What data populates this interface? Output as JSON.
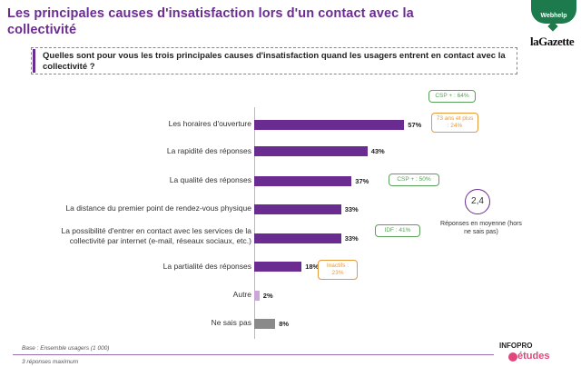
{
  "header": {
    "title": "Les principales causes d'insatisfaction lors d'un contact avec la collectivité",
    "question": "Quelles sont pour vous les trois principales causes d'insatisfaction quand les usagers entrent en contact avec la collectivité ?"
  },
  "logos": {
    "webhelp": "Webhelp",
    "gazette": "laGazette",
    "infopro": "INFOPRO",
    "etudes": "études"
  },
  "colors": {
    "accent": "#6b2c91",
    "bar_main": "#6b2c91",
    "bar_autre": "#c9a8d8",
    "bar_nsp": "#8a8a8a",
    "green": "#5aa05a",
    "orange": "#e79a3a"
  },
  "chart_data": {
    "type": "bar",
    "orientation": "horizontal",
    "unit": "%",
    "categories": [
      "Les horaires d'ouverture",
      "La rapidité des réponses",
      "La qualité des réponses",
      "La distance du premier point de rendez-vous physique",
      "La possibilité d'entrer en contact avec les services de la collectivité par internet (e-mail, réseaux sociaux, etc.)",
      "La partialité des réponses",
      "Autre",
      "Ne sais pas"
    ],
    "values": [
      57,
      43,
      37,
      33,
      33,
      18,
      2,
      8
    ],
    "value_labels": [
      "57%",
      "43%",
      "37%",
      "33%",
      "33%",
      "18%",
      "2%",
      "8%"
    ],
    "xlim": [
      0,
      100
    ],
    "annotations": [
      {
        "category_index": 0,
        "text": "CSP + : 64%",
        "style": "green"
      },
      {
        "category_index": 0,
        "text": "73 ans et plus : 24%",
        "style": "orange"
      },
      {
        "category_index": 2,
        "text": "CSP + : 50%",
        "style": "green"
      },
      {
        "category_index": 4,
        "text": "IDF : 41%",
        "style": "green"
      },
      {
        "category_index": 5,
        "text": "Inactifs : 23%",
        "style": "orange"
      }
    ]
  },
  "average": {
    "value": "2,4",
    "label": "Réponses en moyenne (hors ne sais pas)"
  },
  "footer": {
    "base": "Base : Ensemble usagers (1 000)",
    "max": "3 réponses maximum"
  }
}
